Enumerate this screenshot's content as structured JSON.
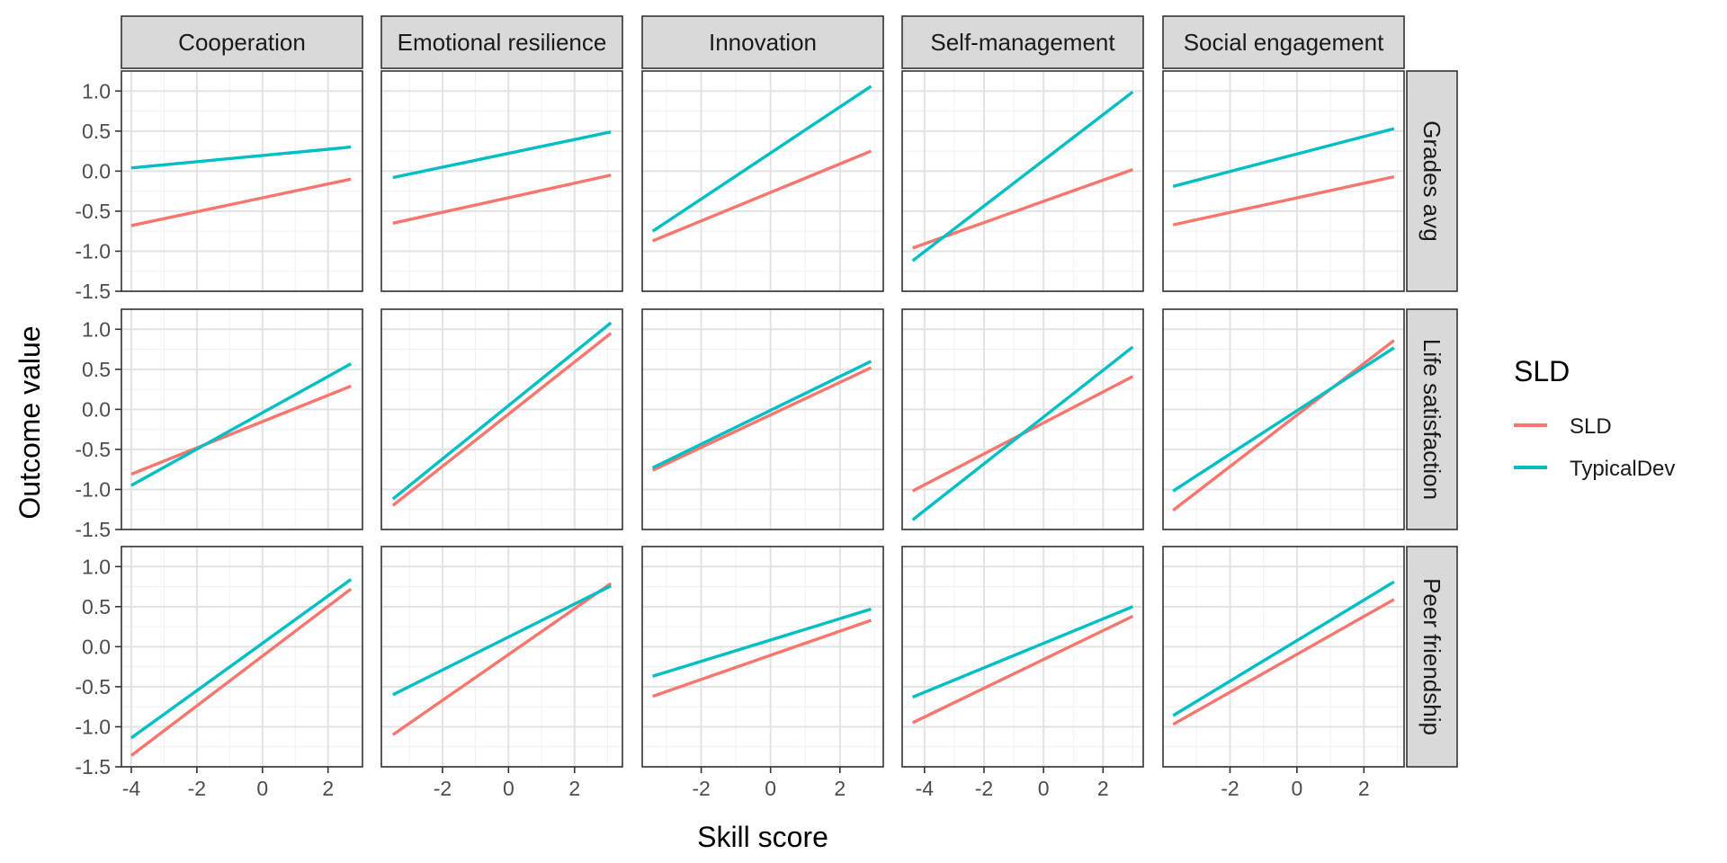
{
  "chart_data": {
    "type": "line",
    "theme": "faceted-panels",
    "xlabel": "Skill score",
    "ylabel": "Outcome value",
    "legend": {
      "title": "SLD",
      "position": "right",
      "entries": [
        {
          "name": "SLD",
          "color": "#F8766D"
        },
        {
          "name": "TypicalDev",
          "color": "#00BFC4"
        }
      ]
    },
    "columns": [
      "Cooperation",
      "Emotional resilience",
      "Innovation",
      "Self-management",
      "Social engagement"
    ],
    "rows": [
      "Grades avg",
      "Life satisfaction",
      "Peer friendship"
    ],
    "ylim": [
      -1.5,
      1.25
    ],
    "yticks": [
      "1.0",
      "0.5",
      "0.0",
      "-0.5",
      "-1.0",
      "-1.5"
    ],
    "ytick_values": [
      1.0,
      0.5,
      0.0,
      -0.5,
      -1.0,
      -1.5
    ],
    "grid": true,
    "column_axes": [
      {
        "xlim": [
          -4.3,
          3.05
        ],
        "ticks": [
          -4,
          -2,
          0,
          2
        ],
        "tick_labels": [
          "-4",
          "-2",
          "0",
          "2"
        ],
        "x_range": [
          -4.0,
          2.7
        ]
      },
      {
        "xlim": [
          -3.85,
          3.45
        ],
        "ticks": [
          -2,
          0,
          2
        ],
        "tick_labels": [
          "-2",
          "0",
          "2"
        ],
        "x_range": [
          -3.5,
          3.1
        ]
      },
      {
        "xlim": [
          -3.7,
          3.25
        ],
        "ticks": [
          -2,
          0,
          2
        ],
        "tick_labels": [
          "-2",
          "0",
          "2"
        ],
        "x_range": [
          -3.4,
          2.9
        ]
      },
      {
        "xlim": [
          -4.75,
          3.35
        ],
        "ticks": [
          -4,
          -2,
          0,
          2
        ],
        "tick_labels": [
          "-4",
          "-2",
          "0",
          "2"
        ],
        "x_range": [
          -4.4,
          3.0
        ]
      },
      {
        "xlim": [
          -4.0,
          3.2
        ],
        "ticks": [
          -2,
          0,
          2
        ],
        "tick_labels": [
          "-2",
          "0",
          "2"
        ],
        "x_range": [
          -3.7,
          2.9
        ]
      }
    ],
    "panels": [
      {
        "row": "Grades avg",
        "col": "Cooperation",
        "series": [
          {
            "name": "SLD",
            "x": [
              -4.0,
              2.7
            ],
            "y": [
              -0.68,
              -0.1
            ]
          },
          {
            "name": "TypicalDev",
            "x": [
              -4.0,
              2.7
            ],
            "y": [
              0.04,
              0.3
            ]
          }
        ]
      },
      {
        "row": "Grades avg",
        "col": "Emotional resilience",
        "series": [
          {
            "name": "SLD",
            "x": [
              -3.5,
              3.1
            ],
            "y": [
              -0.65,
              -0.05
            ]
          },
          {
            "name": "TypicalDev",
            "x": [
              -3.5,
              3.1
            ],
            "y": [
              -0.08,
              0.49
            ]
          }
        ]
      },
      {
        "row": "Grades avg",
        "col": "Innovation",
        "series": [
          {
            "name": "SLD",
            "x": [
              -3.4,
              2.9
            ],
            "y": [
              -0.87,
              0.25
            ]
          },
          {
            "name": "TypicalDev",
            "x": [
              -3.4,
              2.9
            ],
            "y": [
              -0.75,
              1.06
            ]
          }
        ]
      },
      {
        "row": "Grades avg",
        "col": "Self-management",
        "series": [
          {
            "name": "SLD",
            "x": [
              -4.4,
              3.0
            ],
            "y": [
              -0.96,
              0.02
            ]
          },
          {
            "name": "TypicalDev",
            "x": [
              -4.4,
              3.0
            ],
            "y": [
              -1.12,
              0.99
            ]
          }
        ]
      },
      {
        "row": "Grades avg",
        "col": "Social engagement",
        "series": [
          {
            "name": "SLD",
            "x": [
              -3.7,
              2.9
            ],
            "y": [
              -0.67,
              -0.07
            ]
          },
          {
            "name": "TypicalDev",
            "x": [
              -3.7,
              2.9
            ],
            "y": [
              -0.19,
              0.53
            ]
          }
        ]
      },
      {
        "row": "Life satisfaction",
        "col": "Cooperation",
        "series": [
          {
            "name": "SLD",
            "x": [
              -4.0,
              2.7
            ],
            "y": [
              -0.81,
              0.29
            ]
          },
          {
            "name": "TypicalDev",
            "x": [
              -4.0,
              2.7
            ],
            "y": [
              -0.95,
              0.57
            ]
          }
        ]
      },
      {
        "row": "Life satisfaction",
        "col": "Emotional resilience",
        "series": [
          {
            "name": "SLD",
            "x": [
              -3.5,
              3.1
            ],
            "y": [
              -1.2,
              0.95
            ]
          },
          {
            "name": "TypicalDev",
            "x": [
              -3.5,
              3.1
            ],
            "y": [
              -1.12,
              1.08
            ]
          }
        ]
      },
      {
        "row": "Life satisfaction",
        "col": "Innovation",
        "series": [
          {
            "name": "SLD",
            "x": [
              -3.4,
              2.9
            ],
            "y": [
              -0.76,
              0.52
            ]
          },
          {
            "name": "TypicalDev",
            "x": [
              -3.4,
              2.9
            ],
            "y": [
              -0.73,
              0.6
            ]
          }
        ]
      },
      {
        "row": "Life satisfaction",
        "col": "Self-management",
        "series": [
          {
            "name": "SLD",
            "x": [
              -4.4,
              3.0
            ],
            "y": [
              -1.02,
              0.41
            ]
          },
          {
            "name": "TypicalDev",
            "x": [
              -4.4,
              3.0
            ],
            "y": [
              -1.38,
              0.78
            ]
          }
        ]
      },
      {
        "row": "Life satisfaction",
        "col": "Social engagement",
        "series": [
          {
            "name": "SLD",
            "x": [
              -3.7,
              2.9
            ],
            "y": [
              -1.26,
              0.86
            ]
          },
          {
            "name": "TypicalDev",
            "x": [
              -3.7,
              2.9
            ],
            "y": [
              -1.02,
              0.77
            ]
          }
        ]
      },
      {
        "row": "Peer friendship",
        "col": "Cooperation",
        "series": [
          {
            "name": "SLD",
            "x": [
              -4.0,
              2.7
            ],
            "y": [
              -1.36,
              0.72
            ]
          },
          {
            "name": "TypicalDev",
            "x": [
              -4.0,
              2.7
            ],
            "y": [
              -1.14,
              0.84
            ]
          }
        ]
      },
      {
        "row": "Peer friendship",
        "col": "Emotional resilience",
        "series": [
          {
            "name": "SLD",
            "x": [
              -3.5,
              3.1
            ],
            "y": [
              -1.1,
              0.79
            ]
          },
          {
            "name": "TypicalDev",
            "x": [
              -3.5,
              3.1
            ],
            "y": [
              -0.6,
              0.76
            ]
          }
        ]
      },
      {
        "row": "Peer friendship",
        "col": "Innovation",
        "series": [
          {
            "name": "SLD",
            "x": [
              -3.4,
              2.9
            ],
            "y": [
              -0.62,
              0.33
            ]
          },
          {
            "name": "TypicalDev",
            "x": [
              -3.4,
              2.9
            ],
            "y": [
              -0.37,
              0.47
            ]
          }
        ]
      },
      {
        "row": "Peer friendship",
        "col": "Self-management",
        "series": [
          {
            "name": "SLD",
            "x": [
              -4.4,
              3.0
            ],
            "y": [
              -0.95,
              0.38
            ]
          },
          {
            "name": "TypicalDev",
            "x": [
              -4.4,
              3.0
            ],
            "y": [
              -0.63,
              0.5
            ]
          }
        ]
      },
      {
        "row": "Peer friendship",
        "col": "Social engagement",
        "series": [
          {
            "name": "SLD",
            "x": [
              -3.7,
              2.9
            ],
            "y": [
              -0.97,
              0.59
            ]
          },
          {
            "name": "TypicalDev",
            "x": [
              -3.7,
              2.9
            ],
            "y": [
              -0.86,
              0.81
            ]
          }
        ]
      }
    ]
  }
}
